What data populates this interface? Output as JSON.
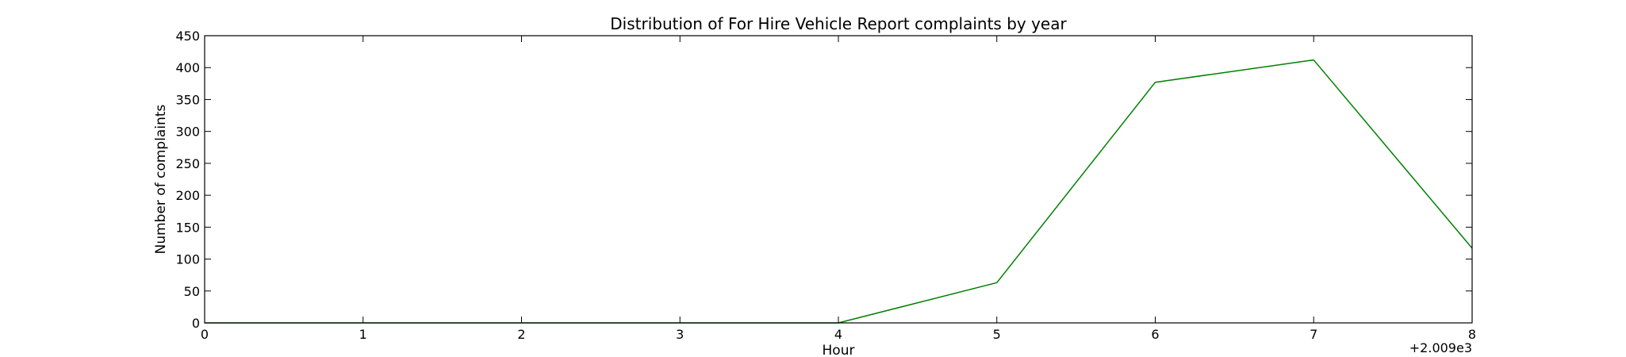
{
  "chart_data": {
    "type": "line",
    "title": "Distribution of  For Hire Vehicle Report complaints by year",
    "xlabel": "Hour",
    "ylabel": "Number of complaints",
    "x_offset_label": "+2.009e3",
    "xlim": [
      0,
      8
    ],
    "ylim": [
      0,
      450
    ],
    "xticks": [
      0,
      1,
      2,
      3,
      4,
      5,
      6,
      7,
      8
    ],
    "yticks": [
      0,
      50,
      100,
      150,
      200,
      250,
      300,
      350,
      400,
      450
    ],
    "grid": false,
    "series": [
      {
        "color": "#008000",
        "x": [
          0,
          1,
          2,
          3,
          4,
          5,
          6,
          7,
          8
        ],
        "y": [
          0,
          0,
          0,
          0,
          0,
          63,
          377,
          412,
          117
        ]
      }
    ]
  }
}
